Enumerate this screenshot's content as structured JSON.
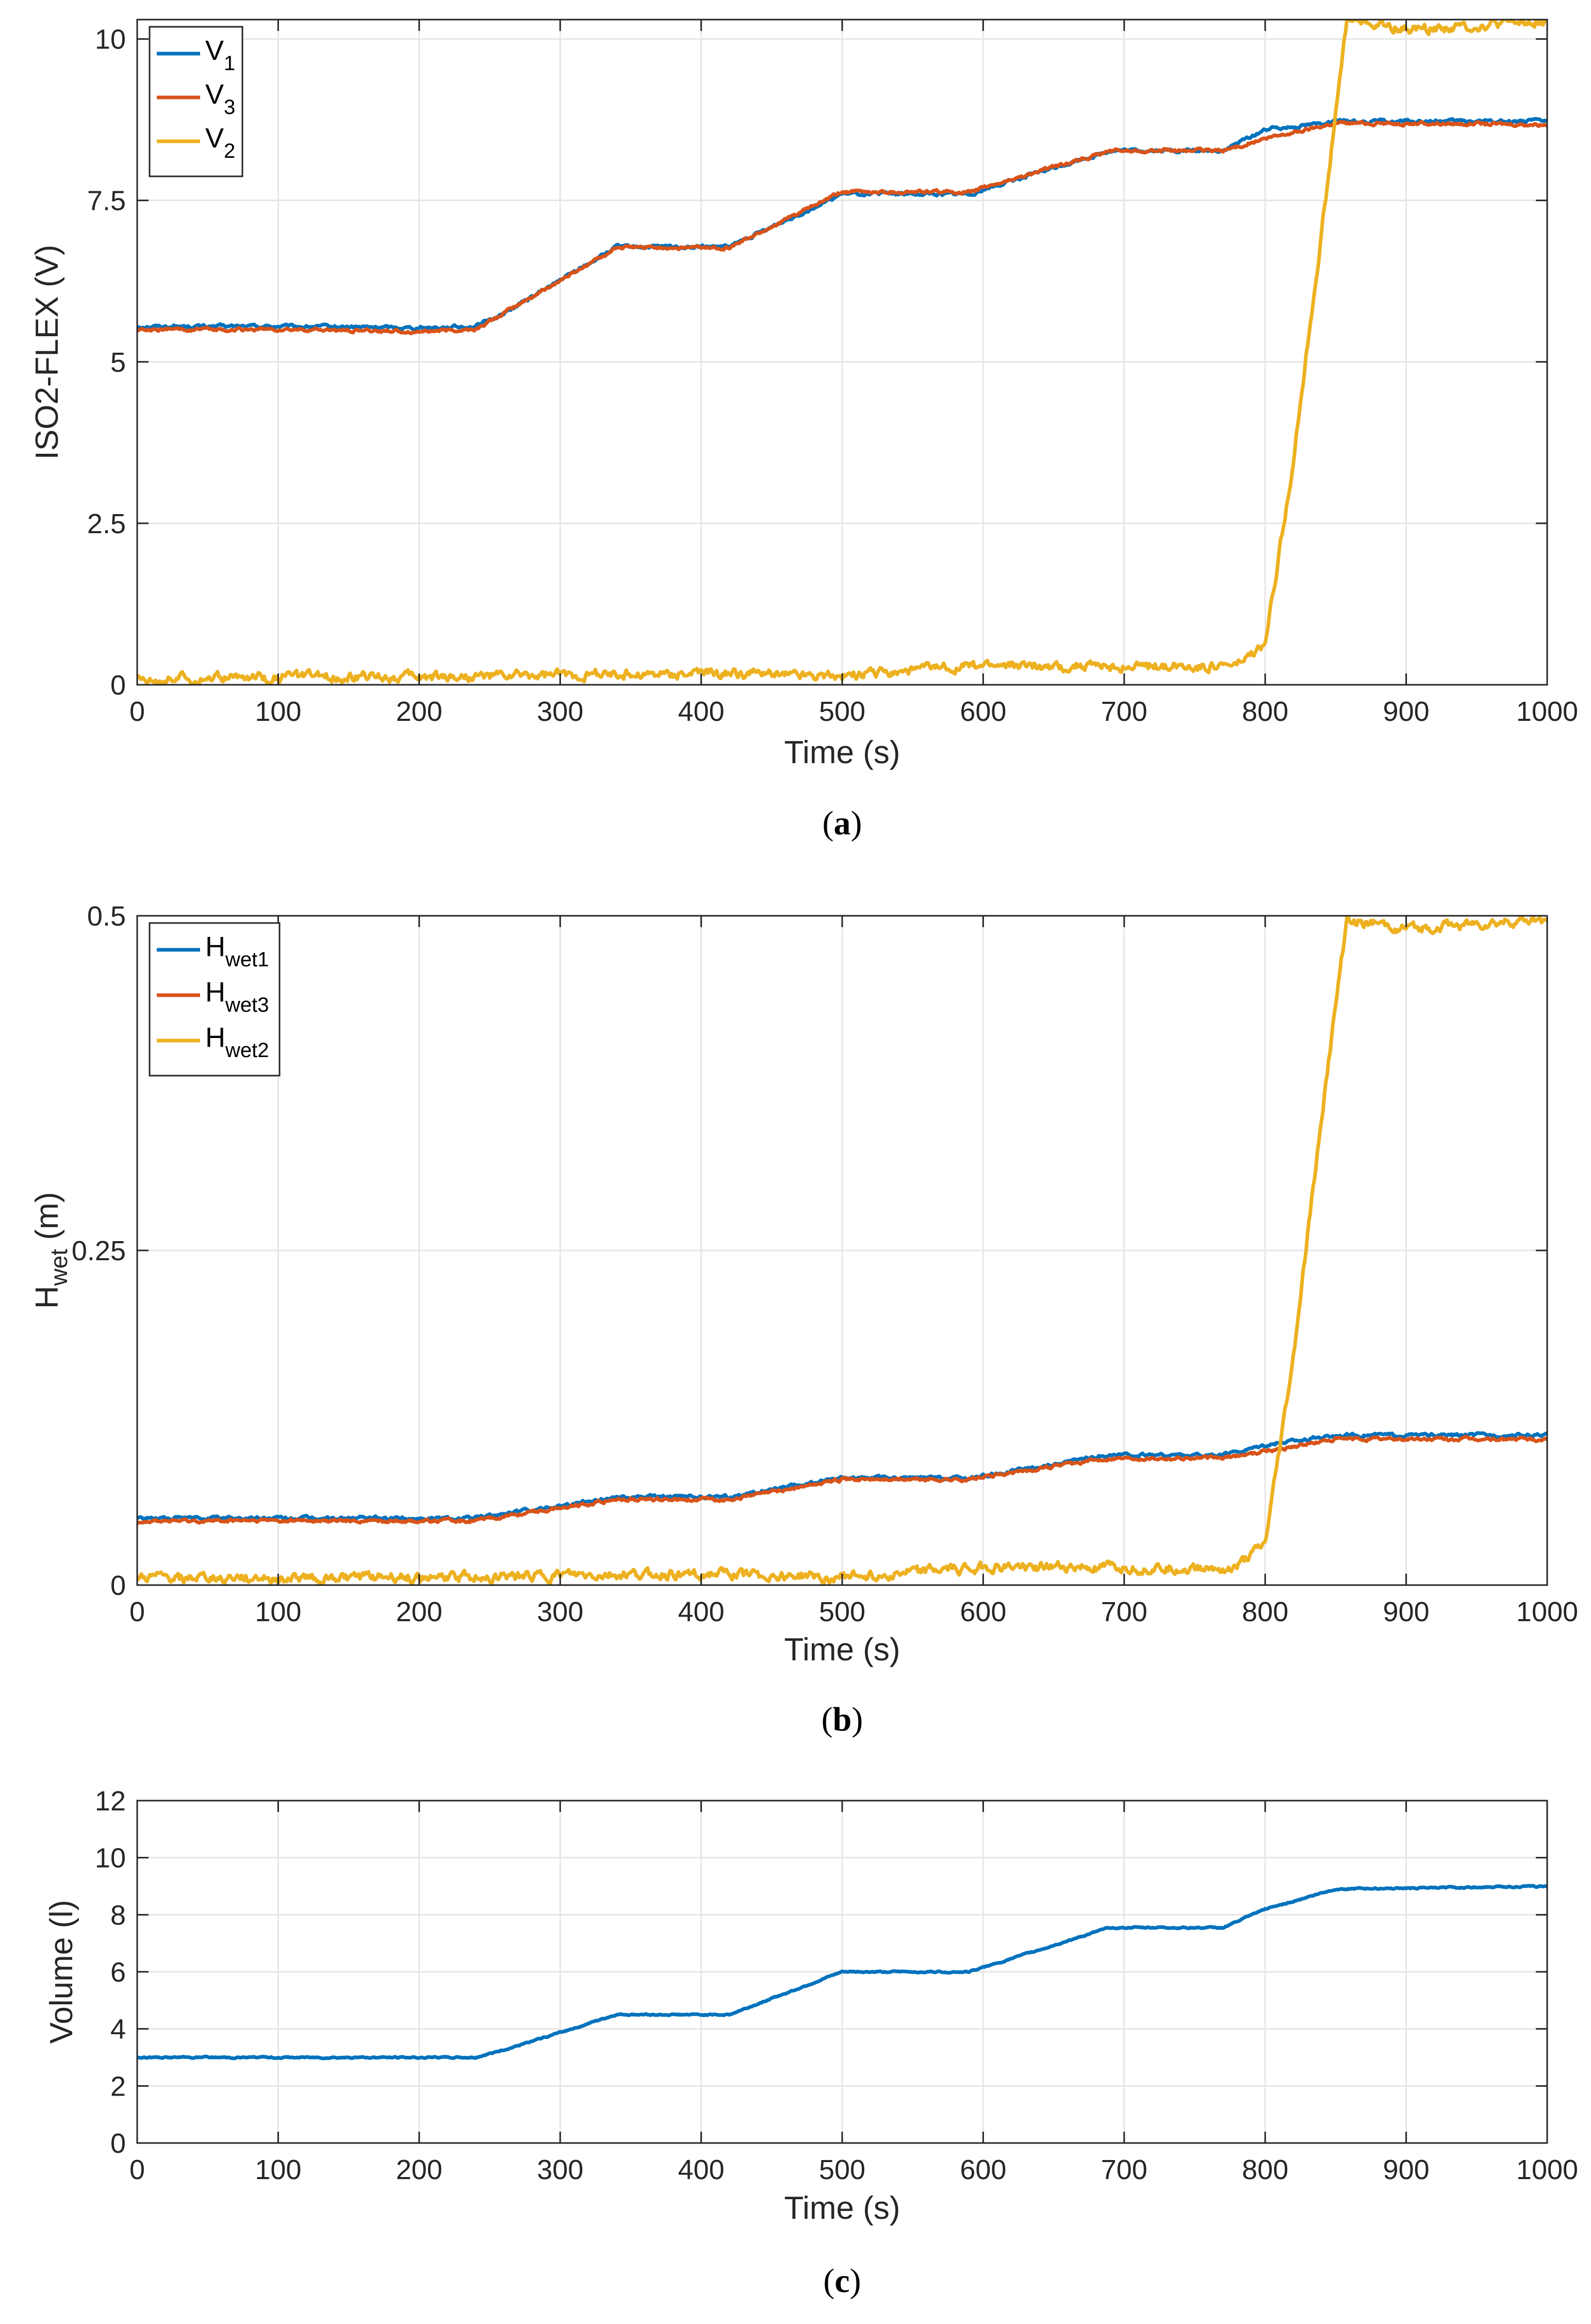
{
  "colors": {
    "blue": "#0072BD",
    "orange": "#D95319",
    "yellow": "#EDB120",
    "grid": "#e6e6e6",
    "axis": "#262626"
  },
  "chart_data": [
    {
      "id": "a",
      "type": "line",
      "sublabel_open": "(",
      "sublabel_letter": "a",
      "sublabel_close": ")",
      "xlabel": "Time (s)",
      "ylabel": "ISO2-FLEX (V)",
      "xlim": [
        0,
        1000
      ],
      "ylim": [
        0,
        10.3
      ],
      "xticks": [
        0,
        100,
        200,
        300,
        400,
        500,
        600,
        700,
        800,
        900,
        1000
      ],
      "yticks": [
        0,
        2.5,
        5,
        7.5,
        10
      ],
      "ytick_labels": [
        "0",
        "2.5",
        "5",
        "7.5",
        "10"
      ],
      "legend_position": "top-left",
      "series": [
        {
          "name": "V",
          "sub": "1",
          "color": "blue",
          "noise": 0.02,
          "x": [
            0,
            50,
            100,
            200,
            240,
            260,
            340,
            420,
            500,
            520,
            590,
            690,
            770,
            800,
            850,
            1000
          ],
          "y": [
            5.55,
            5.55,
            5.55,
            5.53,
            5.55,
            5.75,
            6.78,
            6.78,
            7.6,
            7.6,
            7.6,
            8.27,
            8.27,
            8.6,
            8.72,
            8.73
          ]
        },
        {
          "name": "V",
          "sub": "3",
          "color": "orange",
          "noise": 0.02,
          "x": [
            0,
            50,
            100,
            200,
            240,
            260,
            340,
            420,
            500,
            520,
            590,
            690,
            770,
            800,
            850,
            1000
          ],
          "y": [
            5.5,
            5.5,
            5.5,
            5.47,
            5.5,
            5.75,
            6.77,
            6.77,
            7.63,
            7.63,
            7.63,
            8.27,
            8.27,
            8.45,
            8.7,
            8.68
          ]
        },
        {
          "name": "V",
          "sub": "2",
          "color": "yellow",
          "noise": 0.06,
          "x": [
            0,
            100,
            240,
            400,
            500,
            600,
            700,
            780,
            800,
            820,
            840,
            858,
            870,
            900,
            950,
            1000
          ],
          "y": [
            0.1,
            0.12,
            0.13,
            0.18,
            0.15,
            0.3,
            0.28,
            0.3,
            0.6,
            3.5,
            7.0,
            10.3,
            10.25,
            10.15,
            10.2,
            10.28
          ]
        }
      ]
    },
    {
      "id": "b",
      "type": "line",
      "sublabel_open": "(",
      "sublabel_letter": "b",
      "sublabel_close": ")",
      "xlabel": "Time (s)",
      "ylabel_main": "H",
      "ylabel_sub": "wet",
      "ylabel_unit": " (m)",
      "xlim": [
        0,
        1000
      ],
      "ylim": [
        0,
        0.5
      ],
      "xticks": [
        0,
        100,
        200,
        300,
        400,
        500,
        600,
        700,
        800,
        900,
        1000
      ],
      "yticks": [
        0,
        0.25,
        0.5
      ],
      "ytick_labels": [
        "0",
        "0.25",
        "0.5"
      ],
      "legend_position": "top-left",
      "series": [
        {
          "name": "H",
          "sub": "wet1",
          "color": "blue",
          "noise": 0.001,
          "x": [
            0,
            240,
            340,
            420,
            500,
            590,
            690,
            770,
            800,
            850,
            1000
          ],
          "y": [
            0.05,
            0.05,
            0.066,
            0.066,
            0.08,
            0.08,
            0.097,
            0.097,
            0.105,
            0.112,
            0.112
          ]
        },
        {
          "name": "H",
          "sub": "wet3",
          "color": "orange",
          "noise": 0.001,
          "x": [
            0,
            240,
            340,
            420,
            500,
            590,
            690,
            770,
            800,
            850,
            1000
          ],
          "y": [
            0.048,
            0.048,
            0.064,
            0.064,
            0.079,
            0.079,
            0.095,
            0.095,
            0.1,
            0.109,
            0.109
          ]
        },
        {
          "name": "H",
          "sub": "wet2",
          "color": "yellow",
          "noise": 0.003,
          "x": [
            0,
            240,
            400,
            500,
            600,
            700,
            780,
            800,
            820,
            840,
            858,
            900,
            1000
          ],
          "y": [
            0.005,
            0.006,
            0.008,
            0.006,
            0.013,
            0.013,
            0.013,
            0.03,
            0.17,
            0.35,
            0.497,
            0.49,
            0.497
          ]
        }
      ]
    },
    {
      "id": "c",
      "type": "line",
      "sublabel_open": "(",
      "sublabel_letter": "c",
      "sublabel_close": ")",
      "xlabel": "Time (s)",
      "ylabel": "Volume (l)",
      "xlim": [
        0,
        1000
      ],
      "ylim": [
        0,
        12
      ],
      "xticks": [
        0,
        100,
        200,
        300,
        400,
        500,
        600,
        700,
        800,
        900,
        1000
      ],
      "yticks": [
        0,
        2,
        4,
        6,
        8,
        10,
        12
      ],
      "ytick_labels": [
        "0",
        "2",
        "4",
        "6",
        "8",
        "10",
        "12"
      ],
      "series": [
        {
          "name": "Volume",
          "color": "blue",
          "noise": 0.02,
          "x": [
            0,
            240,
            270,
            340,
            420,
            500,
            590,
            690,
            770,
            800,
            850,
            1000
          ],
          "y": [
            3.0,
            3.0,
            3.4,
            4.5,
            4.5,
            6.0,
            6.0,
            7.55,
            7.55,
            8.2,
            8.9,
            9.0
          ]
        }
      ]
    }
  ]
}
